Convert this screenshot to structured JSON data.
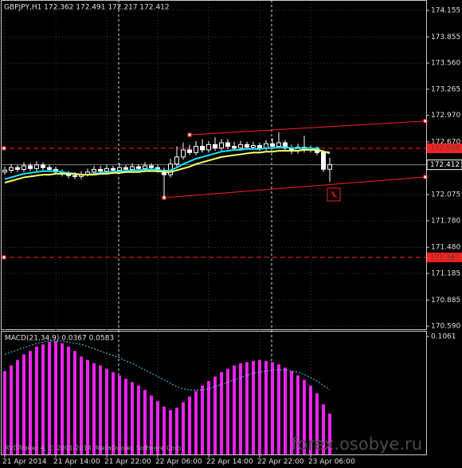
{
  "chart_data": [
    {
      "type": "candlestick",
      "title": "GBPJPY,H1  172.362 172.491 172.217 172.412",
      "categories": [
        "21 Apr 2014",
        null,
        null,
        null,
        null,
        null,
        null,
        null,
        "21 Apr 14:00",
        null,
        null,
        null,
        null,
        null,
        null,
        null,
        "21 Apr 22:00",
        null,
        null,
        null,
        null,
        null,
        null,
        null,
        "22 Apr 06:00",
        null,
        null,
        null,
        null,
        null,
        null,
        null,
        "22 Apr 14:00",
        null,
        null,
        null,
        null,
        null,
        null,
        null,
        "22 Apr 22:00",
        null,
        null,
        null,
        null,
        null,
        null,
        null,
        "23 Apr 06:00",
        null,
        null,
        null
      ],
      "open": [
        172.33,
        172.35,
        172.38,
        172.36,
        172.4,
        172.37,
        172.41,
        172.38,
        172.36,
        172.33,
        172.31,
        172.29,
        172.28,
        172.3,
        172.33,
        172.36,
        172.34,
        172.37,
        172.35,
        172.38,
        172.36,
        172.39,
        172.37,
        172.4,
        172.38,
        172.35,
        172.3,
        172.42,
        172.5,
        172.58,
        172.55,
        172.62,
        172.58,
        172.64,
        172.6,
        172.66,
        172.62,
        172.6,
        172.64,
        172.61,
        172.63,
        172.6,
        172.65,
        172.62,
        172.66,
        172.6,
        172.57,
        172.61,
        172.58,
        172.6,
        172.55,
        172.362
      ],
      "high": [
        172.39,
        172.42,
        172.41,
        172.44,
        172.43,
        172.45,
        172.44,
        172.41,
        172.39,
        172.36,
        172.34,
        172.33,
        172.34,
        172.37,
        172.4,
        172.4,
        172.41,
        172.4,
        172.43,
        172.41,
        172.43,
        172.42,
        172.44,
        172.43,
        172.41,
        172.38,
        172.48,
        172.62,
        172.66,
        172.64,
        172.68,
        172.7,
        172.68,
        172.72,
        172.7,
        172.7,
        172.67,
        172.68,
        172.67,
        172.67,
        172.66,
        172.69,
        172.71,
        172.78,
        172.69,
        172.64,
        172.65,
        172.74,
        172.63,
        172.62,
        172.58,
        172.491
      ],
      "low": [
        172.3,
        172.32,
        172.33,
        172.33,
        172.34,
        172.34,
        172.35,
        172.33,
        172.3,
        172.28,
        172.26,
        172.25,
        172.25,
        172.28,
        172.31,
        172.31,
        172.31,
        172.32,
        172.32,
        172.33,
        172.33,
        172.34,
        172.34,
        172.35,
        172.32,
        172.03,
        172.27,
        172.39,
        172.47,
        172.52,
        172.52,
        172.55,
        172.55,
        172.57,
        172.57,
        172.59,
        172.57,
        172.57,
        172.58,
        172.58,
        172.57,
        172.57,
        172.59,
        172.59,
        172.57,
        172.53,
        172.54,
        172.55,
        172.55,
        172.52,
        172.33,
        172.217
      ],
      "close": [
        172.35,
        172.38,
        172.36,
        172.4,
        172.37,
        172.41,
        172.38,
        172.36,
        172.33,
        172.31,
        172.29,
        172.28,
        172.3,
        172.33,
        172.36,
        172.34,
        172.37,
        172.35,
        172.38,
        172.36,
        172.39,
        172.37,
        172.4,
        172.38,
        172.35,
        172.3,
        172.42,
        172.5,
        172.58,
        172.55,
        172.62,
        172.58,
        172.64,
        172.6,
        172.66,
        172.62,
        172.6,
        172.64,
        172.61,
        172.63,
        172.6,
        172.65,
        172.62,
        172.66,
        172.6,
        172.57,
        172.61,
        172.58,
        172.6,
        172.55,
        172.362,
        172.412
      ],
      "up_color": "#ffffff",
      "down_color": "#ffffff",
      "lines": [
        {
          "color": "#00e5ff",
          "values": [
            172.25,
            172.27,
            172.29,
            172.31,
            172.32,
            172.33,
            172.34,
            172.34,
            172.34,
            172.33,
            172.32,
            172.31,
            172.3,
            172.3,
            172.31,
            172.32,
            172.33,
            172.33,
            172.34,
            172.34,
            172.35,
            172.35,
            172.36,
            172.36,
            172.36,
            172.34,
            172.35,
            172.38,
            172.42,
            172.45,
            172.48,
            172.5,
            172.52,
            172.54,
            172.56,
            172.57,
            172.58,
            172.58,
            172.59,
            172.59,
            172.59,
            172.6,
            172.6,
            172.61,
            172.61,
            172.6,
            172.6,
            172.6,
            172.6,
            172.59,
            172.56,
            172.54
          ]
        },
        {
          "color": "#ffff66",
          "values": [
            172.21,
            172.23,
            172.25,
            172.27,
            172.28,
            172.29,
            172.3,
            172.3,
            172.31,
            172.31,
            172.31,
            172.31,
            172.3,
            172.3,
            172.3,
            172.31,
            172.31,
            172.32,
            172.32,
            172.33,
            172.33,
            172.33,
            172.34,
            172.34,
            172.34,
            172.33,
            172.33,
            172.35,
            172.37,
            172.39,
            172.42,
            172.44,
            172.46,
            172.48,
            172.5,
            172.51,
            172.52,
            172.53,
            172.54,
            172.55,
            172.55,
            172.56,
            172.56,
            172.57,
            172.57,
            172.57,
            172.57,
            172.58,
            172.58,
            172.58,
            172.56,
            172.55
          ]
        }
      ],
      "levels": [
        172.598,
        171.367
      ],
      "level_color": "#ff2020",
      "current": 172.412,
      "trendlines": [
        {
          "x": [
            29,
            66
          ],
          "y": [
            172.75,
            172.906
          ]
        },
        {
          "x": [
            25,
            66
          ],
          "y": [
            172.04,
            172.274
          ]
        }
      ],
      "ylim": [
        170.555,
        174.272
      ],
      "yticks": [
        174.155,
        173.855,
        {
          "value": 173.56,
          "label": "173.560"
        },
        173.265,
        {
          "value": 172.97,
          "label": "172.970"
        },
        {
          "value": 172.67,
          "label": "172.670"
        },
        172.075,
        {
          "value": 171.78,
          "label": "171.780"
        },
        {
          "value": 171.48,
          "label": "171.480"
        },
        171.185,
        170.885,
        {
          "value": 170.59,
          "label": "170.590"
        }
      ],
      "grid": true
    },
    {
      "type": "bar",
      "title": "MACD(21,34,9) 0.0367 0.0583",
      "color": "#ee22ee",
      "signal_color": "#55ccff",
      "values": [
        0.075,
        0.08,
        0.085,
        0.09,
        0.093,
        0.097,
        0.099,
        0.101,
        0.102,
        0.1,
        0.097,
        0.093,
        0.088,
        0.085,
        0.082,
        0.08,
        0.077,
        0.074,
        0.071,
        0.068,
        0.065,
        0.062,
        0.058,
        0.053,
        0.048,
        0.043,
        0.04,
        0.042,
        0.047,
        0.052,
        0.057,
        0.062,
        0.066,
        0.07,
        0.074,
        0.077,
        0.08,
        0.082,
        0.083,
        0.084,
        0.085,
        0.084,
        0.083,
        0.081,
        0.078,
        0.075,
        0.071,
        0.067,
        0.062,
        0.055,
        0.045,
        0.0367
      ],
      "signal": [
        0.09,
        0.092,
        0.094,
        0.096,
        0.098,
        0.1,
        0.101,
        0.102,
        0.102,
        0.102,
        0.101,
        0.1,
        0.099,
        0.097,
        0.095,
        0.093,
        0.091,
        0.089,
        0.087,
        0.084,
        0.082,
        0.079,
        0.076,
        0.073,
        0.07,
        0.067,
        0.064,
        0.061,
        0.059,
        0.058,
        0.058,
        0.058,
        0.059,
        0.061,
        0.063,
        0.065,
        0.067,
        0.069,
        0.071,
        0.073,
        0.074,
        0.075,
        0.076,
        0.076,
        0.076,
        0.075,
        0.074,
        0.072,
        0.069,
        0.066,
        0.062,
        0.0583
      ],
      "ylim": [
        0,
        0.1061
      ],
      "yticks": [
        0.1061
      ]
    }
  ],
  "footer": "RVDTrader 4, © 2001-2014, MetaQuotes Software Corp.",
  "watermark": "forex.osobye.ru"
}
